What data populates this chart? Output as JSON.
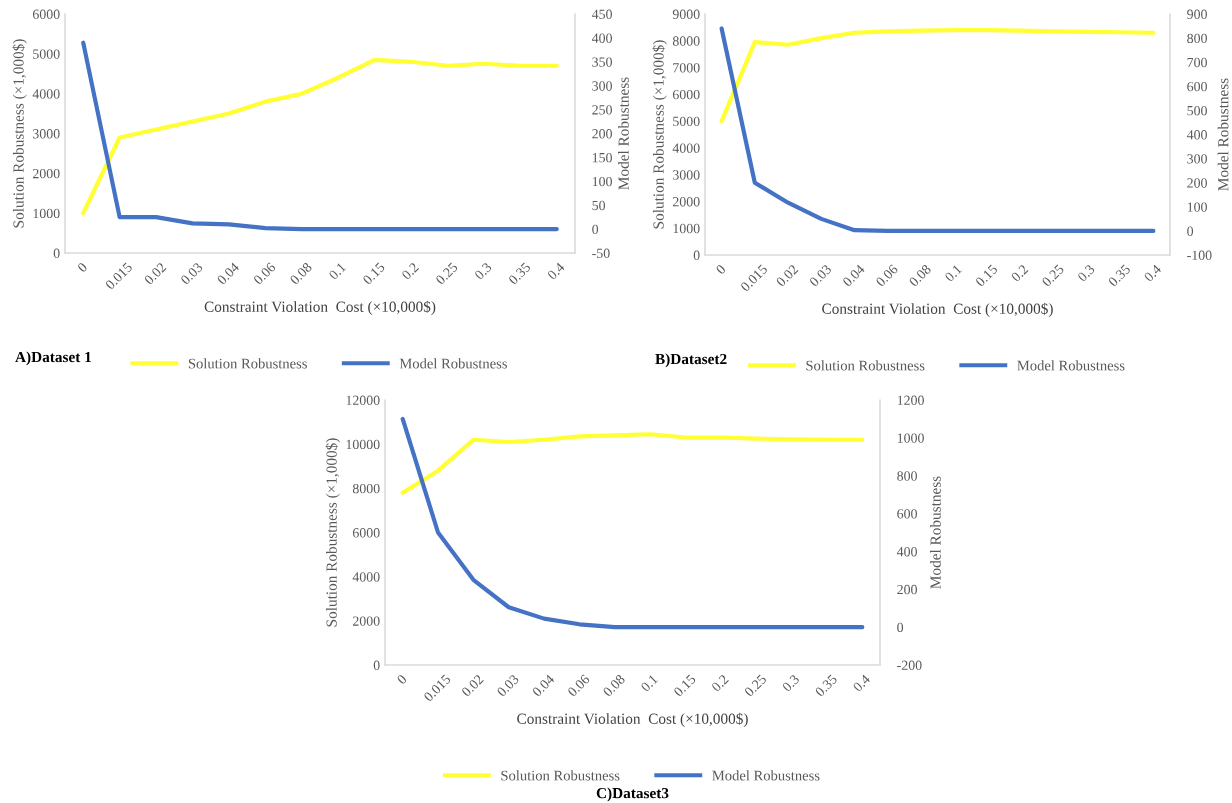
{
  "chart_data": [
    {
      "type": "line",
      "title": "A)Dataset 1",
      "xlabel": "Constraint Violation  Cost (×10,000$)",
      "ylabel": "Solution Robustness (×1,000$)",
      "y2label": "Model Robustness",
      "categories": [
        "0",
        "0.015",
        "0.02",
        "0.03",
        "0.04",
        "0.06",
        "0.08",
        "0.1",
        "0.15",
        "0.2",
        "0.25",
        "0.3",
        "0.35",
        "0.4"
      ],
      "series": [
        {
          "name": "Solution Robustness",
          "color": "#ffff33",
          "values": [
            1000,
            2900,
            3100,
            3300,
            3500,
            3800,
            4000,
            4400,
            4850,
            4800,
            4700,
            4750,
            4700,
            4700
          ]
        },
        {
          "name": "Model Robustness",
          "color": "#4472c4",
          "axis": "y2",
          "values": [
            390,
            25,
            25,
            12,
            10,
            2,
            0,
            0,
            0,
            0,
            0,
            0,
            0,
            0
          ]
        }
      ],
      "ylim": [
        0,
        6000
      ],
      "yticks": [
        0,
        1000,
        2000,
        3000,
        4000,
        5000,
        6000
      ],
      "y2lim": [
        -50,
        450
      ],
      "y2ticks": [
        -50,
        0,
        50,
        100,
        150,
        200,
        250,
        300,
        350,
        400,
        450
      ],
      "legend": "bottom",
      "grid": false
    },
    {
      "type": "line",
      "title": "B)Dataset2",
      "xlabel": "Constraint Violation  Cost (×10,000$)",
      "ylabel": "Solution Robustness (×1,000$)",
      "y2label": "Model Robustness",
      "categories": [
        "0",
        "0.015",
        "0.02",
        "0.03",
        "0.04",
        "0.06",
        "0.08",
        "0.1",
        "0.15",
        "0.2",
        "0.25",
        "0.3",
        "0.35",
        "0.4"
      ],
      "series": [
        {
          "name": "Solution Robustness",
          "color": "#ffff33",
          "values": [
            5000,
            7950,
            7850,
            8100,
            8300,
            8350,
            8380,
            8400,
            8400,
            8380,
            8350,
            8330,
            8320,
            8300
          ]
        },
        {
          "name": "Model Robustness",
          "color": "#4472c4",
          "axis": "y2",
          "values": [
            840,
            200,
            117,
            50,
            3,
            0,
            0,
            0,
            0,
            0,
            0,
            0,
            0,
            0
          ]
        }
      ],
      "ylim": [
        0,
        9000
      ],
      "yticks": [
        0,
        1000,
        2000,
        3000,
        4000,
        5000,
        6000,
        7000,
        8000,
        9000
      ],
      "y2lim": [
        -100,
        900
      ],
      "y2ticks": [
        -100,
        0,
        100,
        200,
        300,
        400,
        500,
        600,
        700,
        800,
        900
      ],
      "legend": "bottom",
      "grid": false
    },
    {
      "type": "line",
      "title": "C)Dataset3",
      "xlabel": "Constraint Violation  Cost (×10,000$)",
      "ylabel": "Solution Robustness (×1,000$)",
      "y2label": "Model Robustness",
      "categories": [
        "0",
        "0.015",
        "0.02",
        "0.03",
        "0.04",
        "0.06",
        "0.08",
        "0.1",
        "0.15",
        "0.2",
        "0.25",
        "0.3",
        "0.35",
        "0.4"
      ],
      "series": [
        {
          "name": "Solution Robustness",
          "color": "#ffff33",
          "values": [
            7800,
            8800,
            10200,
            10100,
            10200,
            10350,
            10400,
            10450,
            10300,
            10300,
            10250,
            10220,
            10200,
            10200
          ]
        },
        {
          "name": "Model Robustness",
          "color": "#4472c4",
          "axis": "y2",
          "values": [
            1100,
            500,
            250,
            105,
            45,
            15,
            0,
            0,
            0,
            0,
            0,
            0,
            0,
            0
          ]
        }
      ],
      "ylim": [
        0,
        12000
      ],
      "yticks": [
        0,
        2000,
        4000,
        6000,
        8000,
        10000,
        12000
      ],
      "y2lim": [
        -200,
        1200
      ],
      "y2ticks": [
        -200,
        0,
        200,
        400,
        600,
        800,
        1000,
        1200
      ],
      "legend": "bottom",
      "grid": false
    }
  ]
}
